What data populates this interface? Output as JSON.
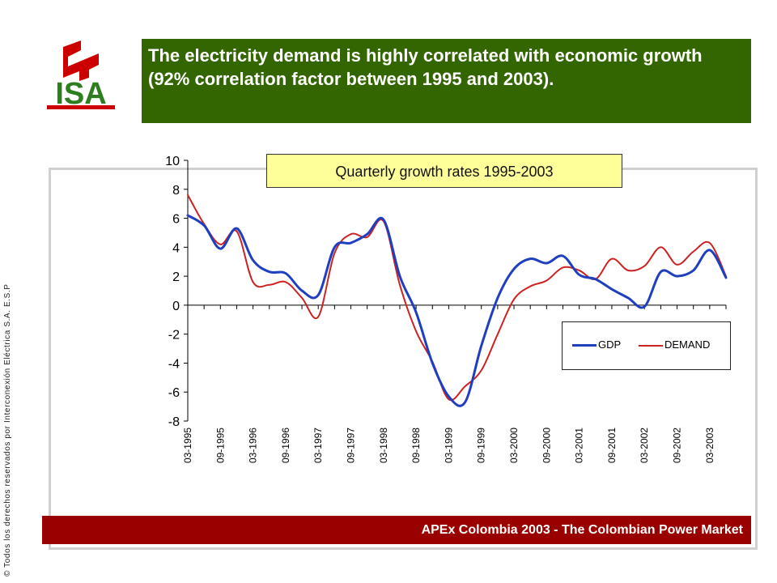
{
  "header": {
    "title": "The electricity demand is highly correlated with economic growth (92% correlation factor between 1995 and 2003)."
  },
  "logo": {
    "text": "ISA",
    "colors": {
      "red": "#cc0000",
      "green": "#2e7d1e"
    }
  },
  "footer": {
    "text": "APEx Colombia 2003 - The Colombian Power Market"
  },
  "side_note": {
    "text": "© Todos los derechos reservados por Interconexión Eléctrica S.A. E.S.P"
  },
  "colors": {
    "header_bg": "#336600",
    "footer_bg": "#990000",
    "title_bg": "#ffff99"
  },
  "chart_data": {
    "type": "line",
    "title": "Quarterly growth rates 1995-2003",
    "xlabel": "",
    "ylabel": "",
    "ylim": [
      -8,
      10
    ],
    "y_ticks": [
      10,
      8,
      6,
      4,
      2,
      0,
      -2,
      -4,
      -6,
      -8
    ],
    "grid": false,
    "legend_position": "right",
    "x": [
      "03-1995",
      "06-1995",
      "09-1995",
      "12-1995",
      "03-1996",
      "06-1996",
      "09-1996",
      "12-1996",
      "03-1997",
      "06-1997",
      "09-1997",
      "12-1997",
      "03-1998",
      "06-1998",
      "09-1998",
      "12-1998",
      "03-1999",
      "06-1999",
      "09-1999",
      "12-1999",
      "03-2000",
      "06-2000",
      "09-2000",
      "12-2000",
      "03-2001",
      "06-2001",
      "09-2001",
      "12-2001",
      "03-2002",
      "06-2002",
      "09-2002",
      "12-2002",
      "03-2003",
      "06-2003"
    ],
    "x_tick_labels": [
      "03-1995",
      "09-1995",
      "03-1996",
      "09-1996",
      "03-1997",
      "09-1997",
      "03-1998",
      "09-1998",
      "03-1999",
      "09-1999",
      "03-2000",
      "09-2000",
      "03-2001",
      "09-2001",
      "03-2002",
      "09-2002",
      "03-2003"
    ],
    "series": [
      {
        "name": "GDP",
        "color": "#1f3fbf",
        "values": [
          6.2,
          5.5,
          3.9,
          5.3,
          3.1,
          2.3,
          2.2,
          1.0,
          0.7,
          4.0,
          4.3,
          4.9,
          5.9,
          2.0,
          -0.5,
          -4.0,
          -6.3,
          -6.7,
          -2.8,
          0.5,
          2.5,
          3.2,
          2.9,
          3.4,
          2.1,
          1.8,
          1.1,
          0.5,
          -0.1,
          2.3,
          2.0,
          2.4,
          3.8,
          1.9
        ]
      },
      {
        "name": "DEMAND",
        "color": "#cc2222",
        "values": [
          7.6,
          5.6,
          4.2,
          5.1,
          1.6,
          1.4,
          1.6,
          0.5,
          -0.8,
          3.6,
          4.9,
          4.7,
          5.8,
          1.4,
          -1.8,
          -3.9,
          -6.5,
          -5.6,
          -4.5,
          -2.0,
          0.4,
          1.3,
          1.7,
          2.6,
          2.4,
          1.8,
          3.2,
          2.4,
          2.7,
          4.0,
          2.8,
          3.7,
          4.3,
          2.0
        ]
      }
    ]
  }
}
